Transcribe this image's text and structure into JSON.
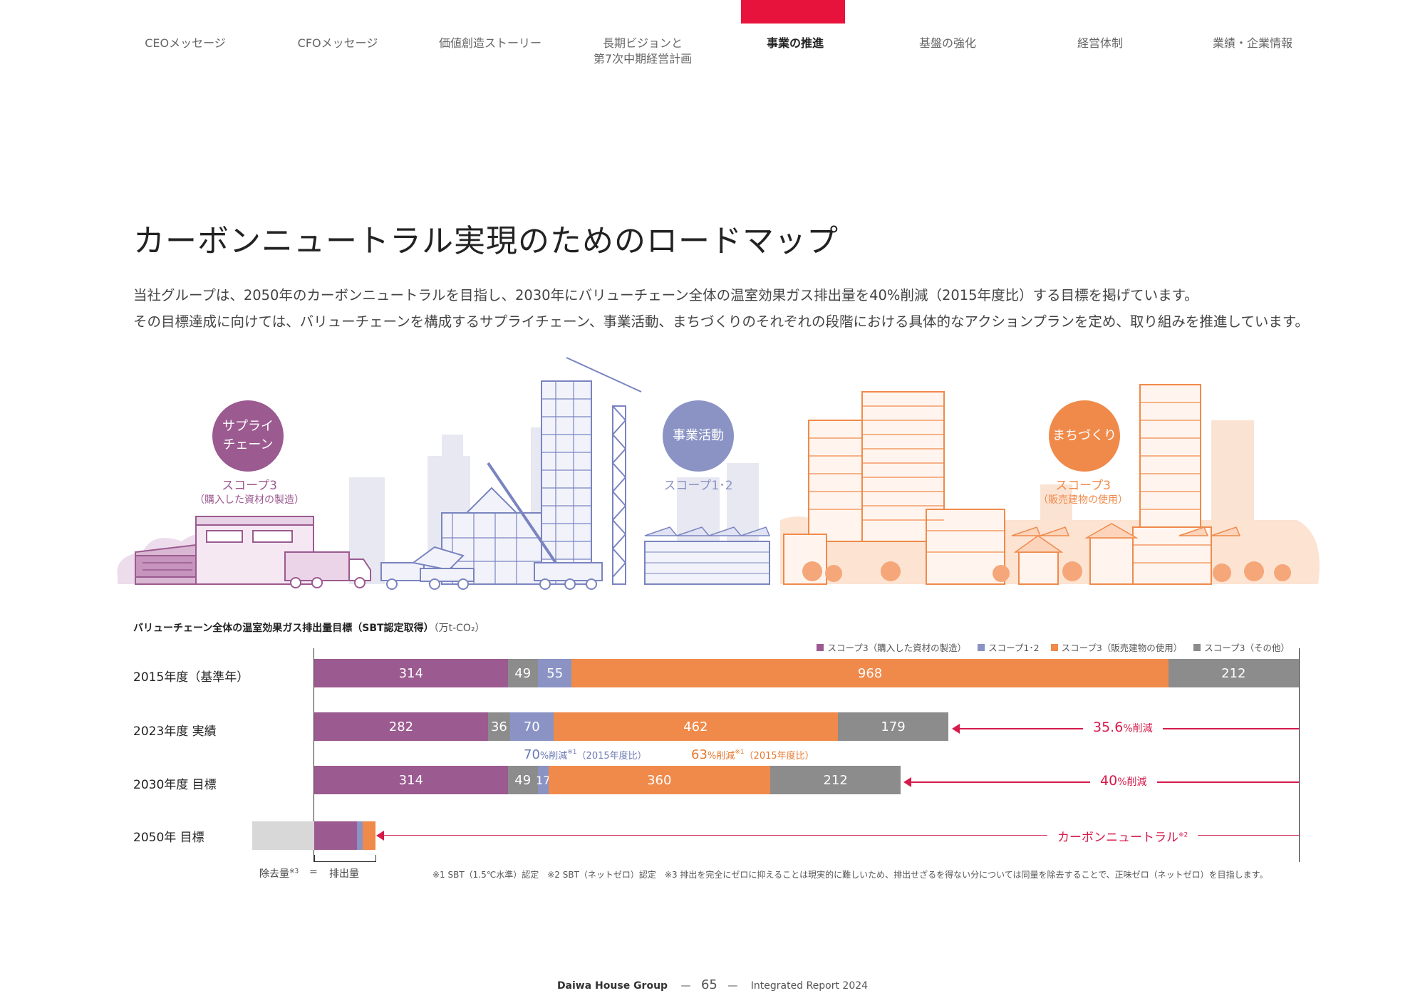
{
  "nav": {
    "items": [
      {
        "label": "CEOメッセージ"
      },
      {
        "label": "CFOメッセージ"
      },
      {
        "label": "価値創造ストーリー"
      },
      {
        "label": "長期ビジョンと\n第7次中期経営計画"
      },
      {
        "label": "事業の推進"
      },
      {
        "label": "基盤の強化"
      },
      {
        "label": "経営体制"
      },
      {
        "label": "業績・企業情報"
      }
    ],
    "active_index": 4
  },
  "page": {
    "title": "カーボンニュートラル実現のためのロードマップ",
    "intro_line1": "当社グループは、2050年のカーボンニュートラルを目指し、2030年にバリューチェーン全体の温室効果ガス排出量を40%削減（2015年度比）する目標を掲げています。",
    "intro_line2": "その目標達成に向けては、バリューチェーンを構成するサプライチェーン、事業活動、まちづくりのそれぞれの段階における具体的なアクションプランを定め、取り組みを推進しています。"
  },
  "illustration": {
    "supply": {
      "circle_line1": "サプライ",
      "circle_line2": "チェーン",
      "scope": "スコープ3",
      "scope_sub": "（購入した資材の製造）",
      "color": "#9b5a90"
    },
    "business": {
      "circle_label": "事業活動",
      "scope": "スコープ1･2",
      "color": "#8a93c4"
    },
    "town": {
      "circle_label": "まちづくり",
      "scope": "スコープ3",
      "scope_sub": "（販売建物の使用）",
      "color": "#f08a4b"
    }
  },
  "chart_data": {
    "type": "bar",
    "orientation": "horizontal-stacked",
    "title": "バリューチェーン全体の温室効果ガス排出量目標（SBT認定取得）",
    "unit": "（万t-CO₂）",
    "categories": [
      "2015年度（基準年）",
      "2023年度 実績",
      "2030年度 目標",
      "2050年 目標"
    ],
    "series": [
      {
        "name": "スコープ3（購入した資材の製造）",
        "color": "#9b5a90",
        "values": [
          314,
          282,
          314,
          null
        ]
      },
      {
        "name": "スコープ3（その他）",
        "color": "#8c8c8c",
        "values": [
          49,
          36,
          49,
          null
        ]
      },
      {
        "name": "スコープ1･2",
        "color": "#8a93c4",
        "values": [
          55,
          70,
          17,
          null
        ]
      },
      {
        "name": "スコープ3（販売建物の使用）",
        "color": "#f08a4b",
        "values": [
          968,
          462,
          360,
          null
        ]
      },
      {
        "name": "スコープ3（その他）",
        "color": "#8c8c8c",
        "values": [
          212,
          179,
          212,
          null
        ]
      }
    ],
    "legend": [
      {
        "label": "スコープ3（購入した資材の製造）",
        "color": "#9b5a90"
      },
      {
        "label": "スコープ1･2",
        "color": "#8a93c4"
      },
      {
        "label": "スコープ3（販売建物の使用）",
        "color": "#f08a4b"
      },
      {
        "label": "スコープ3（その他）",
        "color": "#8c8c8c"
      }
    ],
    "legend_position": "top-right",
    "reductions": [
      {
        "value": "35.6",
        "suffix": "%削減"
      },
      {
        "value": "40",
        "suffix": "%削減"
      },
      {
        "value": "カーボンニュートラル",
        "suffix": "※2"
      }
    ],
    "notes": {
      "scope12_pct": "70",
      "scope12_suffix": "%削減",
      "scope12_ref": "※1",
      "scope12_base": "（2015年度比）",
      "scope3_pct": "63",
      "scope3_suffix": "%削減",
      "scope3_ref": "※1",
      "scope3_base": "（2015年度比）"
    },
    "removal_label": "除去量",
    "removal_ref": "※3",
    "equals": "=",
    "emission_label": "排出量",
    "footnotes": "※1 SBT（1.5℃水準）認定　※2 SBT（ネットゼロ）認定　※3 排出を完全にゼロに抑えることは現実的に難しいため、排出せざるを得ない分については同量を除去することで、正味ゼロ（ネットゼロ）を目指します。"
  },
  "footer": {
    "brand": "Daiwa House Group",
    "dash": "—",
    "page": "65",
    "report": "Integrated Report 2024"
  }
}
